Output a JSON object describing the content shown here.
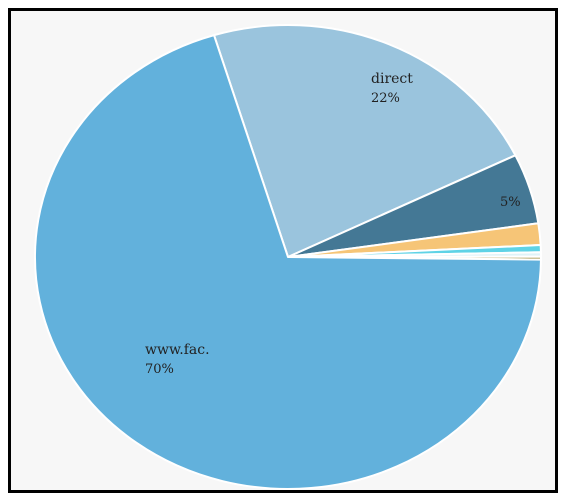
{
  "chart_data": {
    "type": "pie",
    "start_angle_deg": -107,
    "direction": "clockwise",
    "slices": [
      {
        "label": "direct",
        "percent_label": "22%",
        "value": 22.5,
        "color": "#9ac4dd"
      },
      {
        "label": "",
        "percent_label": "5%",
        "value": 4.9,
        "color": "#447895"
      },
      {
        "label": "",
        "percent_label": "",
        "value": 1.5,
        "color": "#f6c577"
      },
      {
        "label": "",
        "percent_label": "",
        "value": 0.5,
        "color": "#5fd3e6"
      },
      {
        "label": "",
        "percent_label": "",
        "value": 0.3,
        "color": "#dff3f8"
      },
      {
        "label": "",
        "percent_label": "",
        "value": 0.2,
        "color": "#9c8a3a"
      },
      {
        "label": "www.fac.",
        "percent_label": "70%",
        "value": 70.1,
        "color": "#62b1dc"
      }
    ]
  }
}
